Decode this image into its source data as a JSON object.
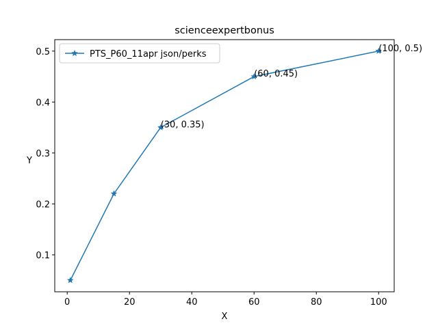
{
  "chart_data": {
    "type": "line",
    "title": "scienceexpertbonus",
    "xlabel": "X",
    "ylabel": "Y",
    "xlim": [
      -4.0,
      105.0
    ],
    "ylim": [
      0.0275,
      0.5225
    ],
    "xticks": [
      0,
      20,
      40,
      60,
      80,
      100
    ],
    "yticks": [
      0.1,
      0.2,
      0.3,
      0.4,
      0.5
    ],
    "xtick_labels": [
      "0",
      "20",
      "40",
      "60",
      "80",
      "100"
    ],
    "ytick_labels": [
      "0.1",
      "0.2",
      "0.3",
      "0.4",
      "0.5"
    ],
    "grid": false,
    "legend": {
      "position": "top-left"
    },
    "series": [
      {
        "name": "PTS_P60_11apr json/perks",
        "color": "#1f77b4",
        "marker": "star",
        "x": [
          1,
          15,
          30,
          60,
          100
        ],
        "y": [
          0.05,
          0.22,
          0.35,
          0.45,
          0.5
        ]
      }
    ],
    "annotations": [
      {
        "text": "(30, 0.35)",
        "x": 30,
        "y": 0.35
      },
      {
        "text": "(60, 0.45)",
        "x": 60,
        "y": 0.45
      },
      {
        "text": "(100, 0.5)",
        "x": 100,
        "y": 0.5
      }
    ]
  }
}
